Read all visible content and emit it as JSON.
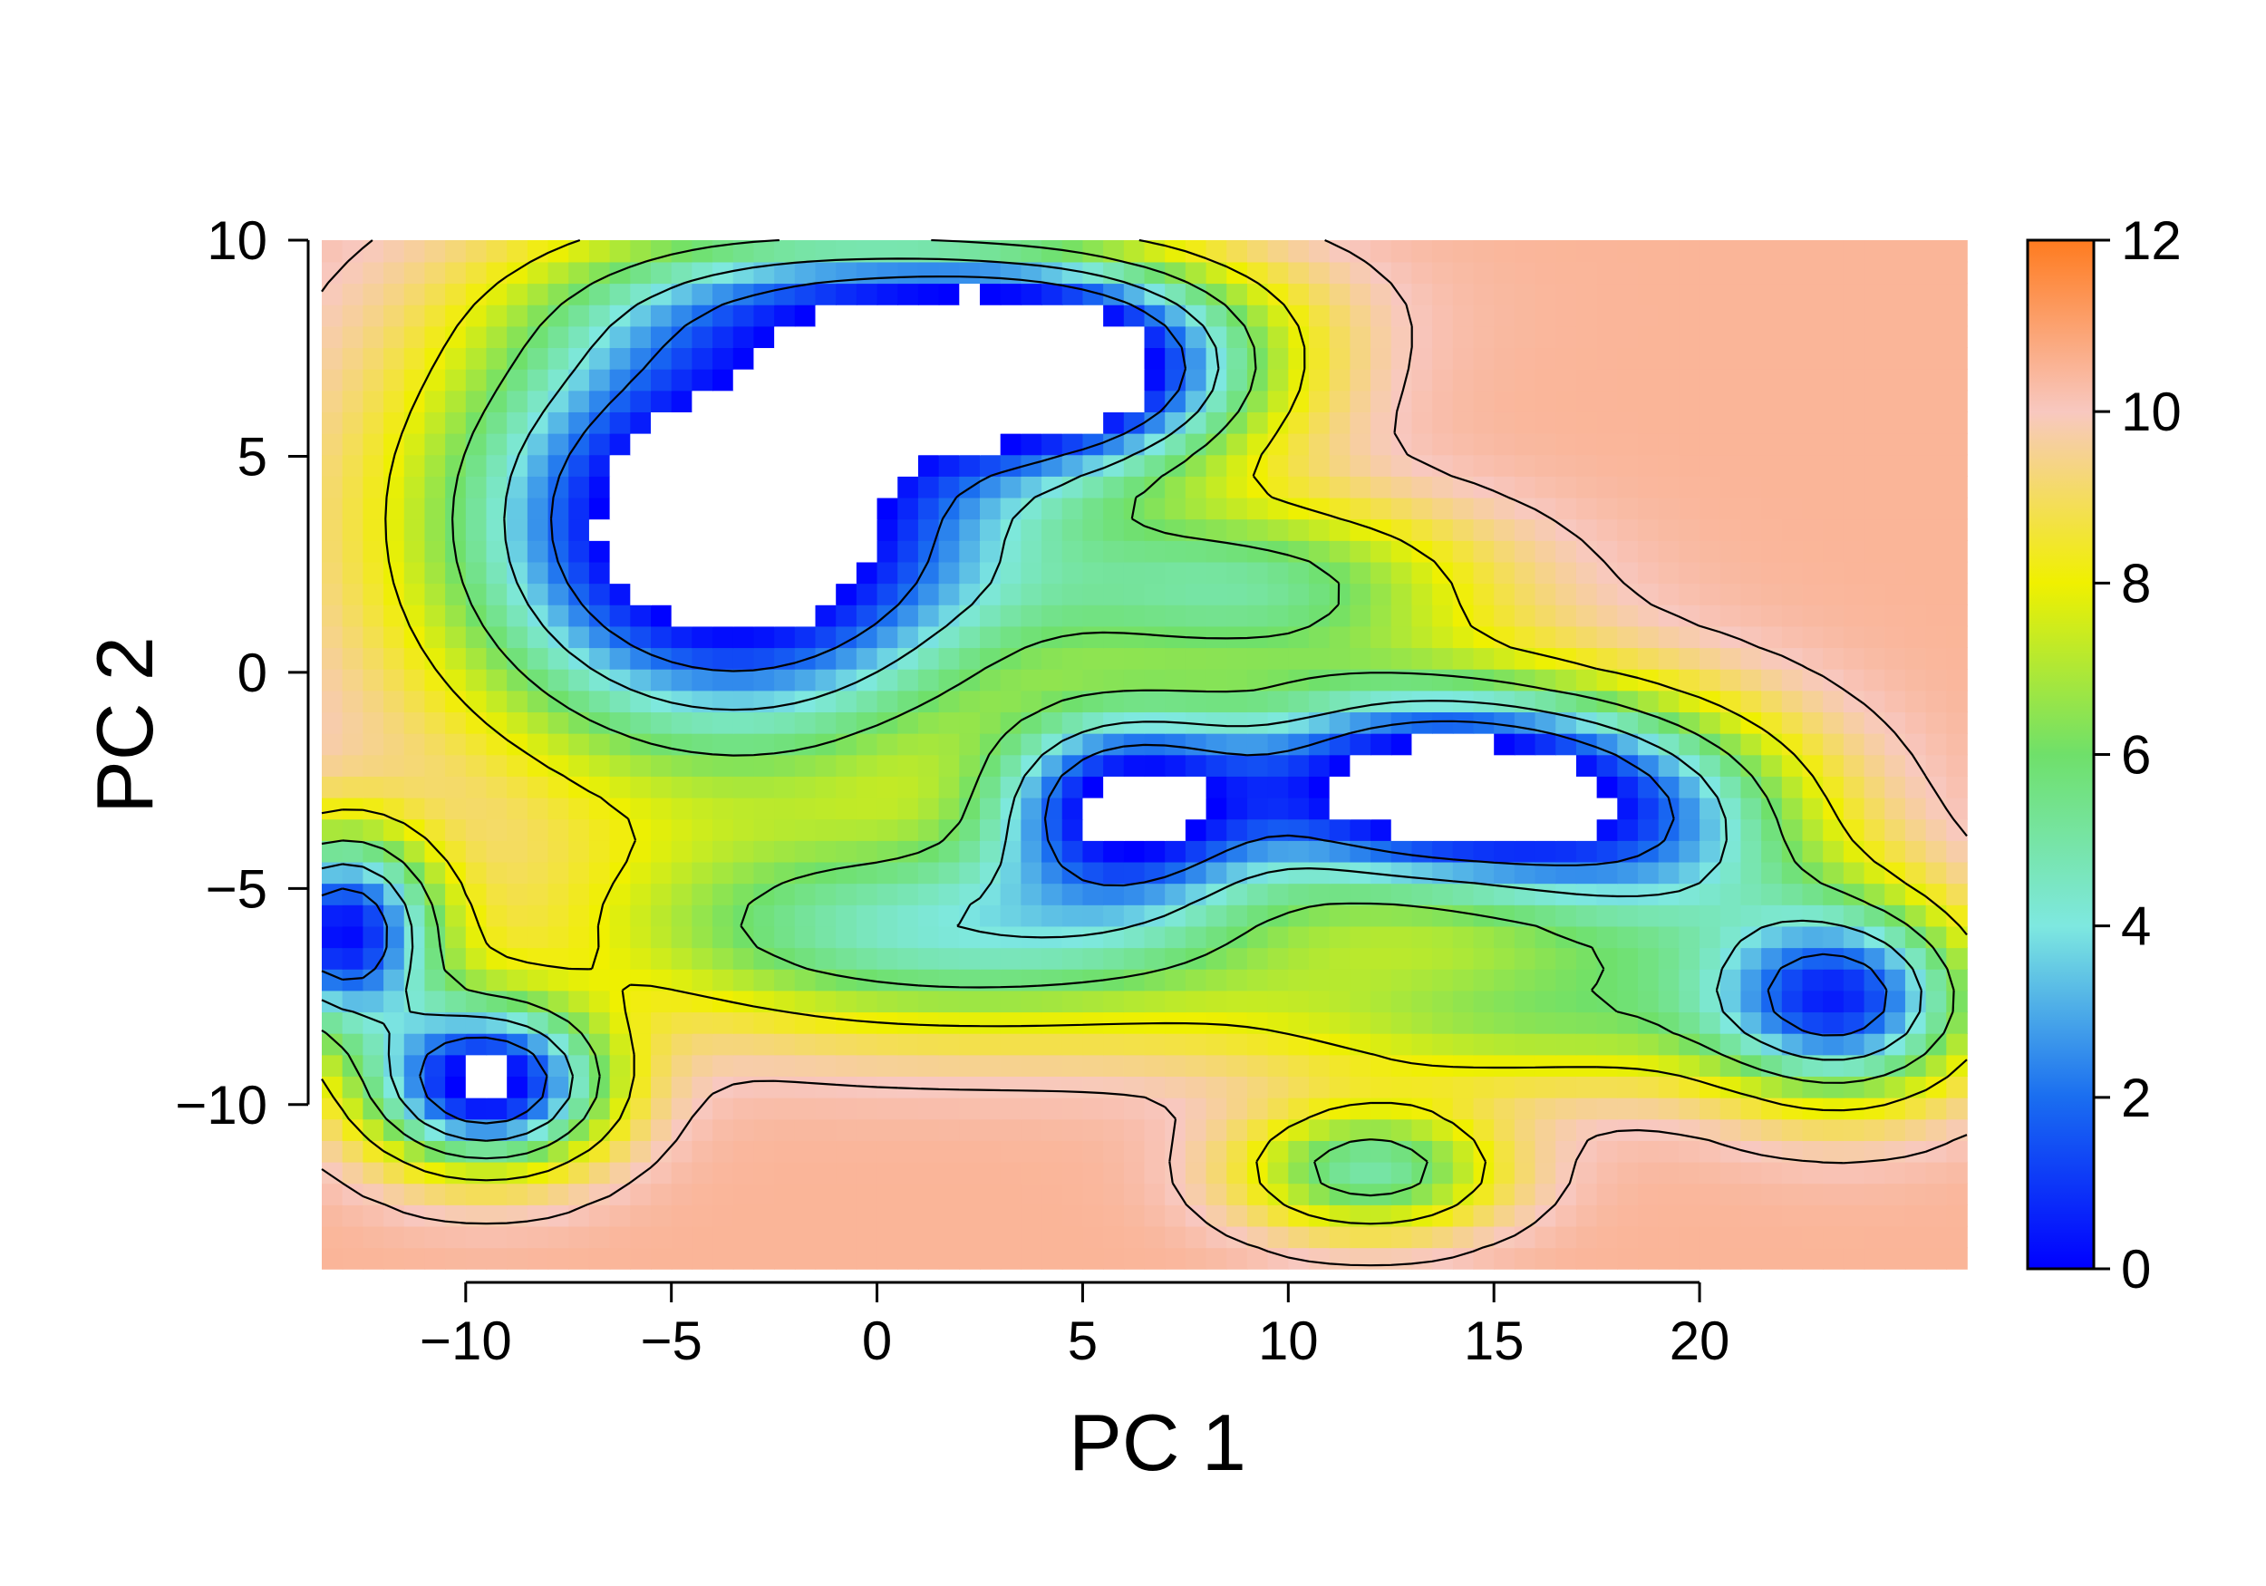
{
  "chart_data": {
    "type": "heatmap",
    "title": "",
    "xlabel": "PC 1",
    "ylabel": "PC 2",
    "xlim": [
      -13.5,
      26.5
    ],
    "ylim": [
      -13.8,
      10
    ],
    "x_ticks": [
      -10,
      -5,
      0,
      5,
      10,
      15,
      20
    ],
    "x_tick_labels": [
      "−10",
      "−5",
      "0",
      "5",
      "10",
      "15",
      "20"
    ],
    "y_ticks": [
      -10,
      -5,
      0,
      5,
      10
    ],
    "y_tick_labels": [
      "−10",
      "−5",
      "0",
      "5",
      "10"
    ],
    "colorbar": {
      "range": [
        0,
        12
      ],
      "ticks": [
        0,
        2,
        4,
        6,
        8,
        10,
        12
      ],
      "tick_labels": [
        "0",
        "2",
        "4",
        "6",
        "8",
        "10",
        "12"
      ],
      "colors": [
        {
          "value": 0,
          "color": "#0000ff"
        },
        {
          "value": 2,
          "color": "#1a6ef0"
        },
        {
          "value": 4,
          "color": "#7ee8e0"
        },
        {
          "value": 6,
          "color": "#6fe06a"
        },
        {
          "value": 8,
          "color": "#f0f000"
        },
        {
          "value": 10,
          "color": "#f8c8c0"
        },
        {
          "value": 12,
          "color": "#ff7b1f"
        }
      ]
    },
    "background_level": 10.5,
    "contour_levels": [
      2,
      4,
      6,
      8,
      10
    ],
    "basins": [
      {
        "name": "upper-left basin",
        "center": [
          -3.5,
          3.5
        ],
        "spread": [
          4.6,
          3.6
        ],
        "depth": 13.5
      },
      {
        "name": "upper-middle lobe",
        "center": [
          4.5,
          6.8
        ],
        "spread": [
          3.2,
          1.5
        ],
        "depth": 11
      },
      {
        "name": "middle-right basin",
        "center": [
          13.5,
          -2.6
        ],
        "spread": [
          3.8,
          1.6
        ],
        "depth": 12
      },
      {
        "name": "lower-left basin",
        "center": [
          -9.5,
          -9.5
        ],
        "spread": [
          2.0,
          1.3
        ],
        "depth": 11
      },
      {
        "name": "left edge basin",
        "center": [
          -13,
          -6
        ],
        "spread": [
          1.6,
          1.6
        ],
        "depth": 10
      },
      {
        "name": "right basin",
        "center": [
          23.5,
          -7.5
        ],
        "spread": [
          2.2,
          1.6
        ],
        "depth": 8.5
      },
      {
        "name": "lower-middle basin",
        "center": [
          12,
          -11.5
        ],
        "spread": [
          2.2,
          1.0
        ],
        "depth": 5.5
      },
      {
        "name": "central channel",
        "center": [
          6,
          -3
        ],
        "spread": [
          2.2,
          1.5
        ],
        "depth": 9
      },
      {
        "name": "lower channel",
        "center": [
          2,
          -6
        ],
        "spread": [
          6,
          1.6
        ],
        "depth": 6
      },
      {
        "name": "upper ridge path",
        "center": [
          9,
          2
        ],
        "spread": [
          4,
          1.4
        ],
        "depth": 5
      },
      {
        "name": "right channel",
        "center": [
          19,
          -4
        ],
        "spread": [
          3,
          2
        ],
        "depth": 5.5
      },
      {
        "name": "lower right path",
        "center": [
          16,
          -8
        ],
        "spread": [
          5,
          1.2
        ],
        "depth": 3.5
      },
      {
        "name": "top arc",
        "center": [
          1,
          8.5
        ],
        "spread": [
          5,
          1.2
        ],
        "depth": 5
      }
    ]
  }
}
